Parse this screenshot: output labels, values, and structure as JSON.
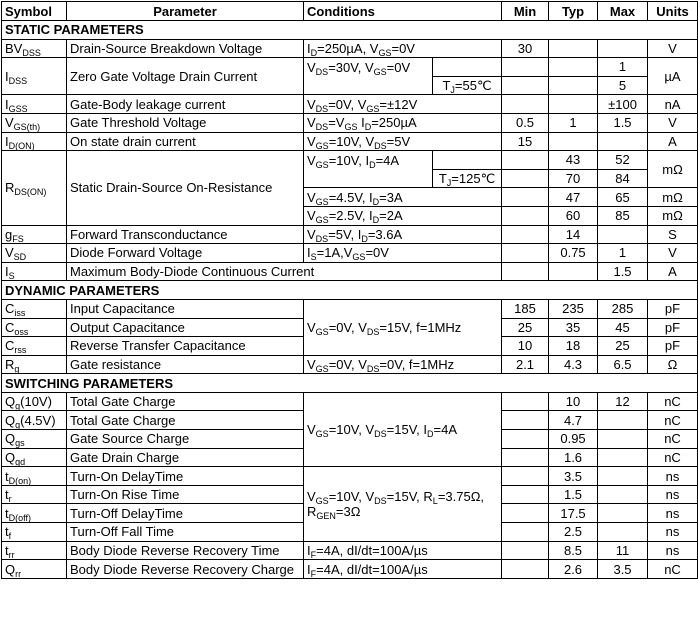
{
  "table": {
    "header": [
      "Symbol",
      "Parameter",
      "Conditions",
      "Min",
      "Typ",
      "Max",
      "Units"
    ],
    "rows": [
      {
        "section": "STATIC PARAMETERS"
      },
      {
        "sym": [
          "BV",
          "DSS"
        ],
        "param": [
          "Drain-Source Breakdown Voltage"
        ],
        "cond": [
          "I",
          "D",
          "=250µA, V",
          "GS",
          "=0V"
        ],
        "min": "30",
        "typ": "",
        "max": "",
        "unit": "V"
      },
      {
        "sym": [
          "I",
          "DSS"
        ],
        "param": [
          "Zero Gate Voltage Drain Current"
        ],
        "cond": [
          "V",
          "DS",
          "=30V, V",
          "GS",
          "=0V"
        ],
        "min": "",
        "typ": "",
        "max": "1",
        "unit": "µA"
      },
      {
        "tj": [
          "T",
          "J",
          "=55℃"
        ],
        "min": "",
        "typ": "",
        "max": "5"
      },
      {
        "sym": [
          "I",
          "GSS"
        ],
        "param": [
          "Gate-Body leakage current"
        ],
        "cond": [
          "V",
          "DS",
          "=0V, V",
          "GS",
          "=±12V"
        ],
        "min": "",
        "typ": "",
        "max": "±100",
        "unit": "nA"
      },
      {
        "sym": [
          "V",
          "GS(th)"
        ],
        "param": [
          "Gate Threshold Voltage"
        ],
        "cond": [
          "V",
          "DS",
          "=V",
          "GS",
          " I",
          "D",
          "=250µA"
        ],
        "min": "0.5",
        "typ": "1",
        "max": "1.5",
        "unit": "V"
      },
      {
        "sym": [
          "I",
          "D(ON)"
        ],
        "param": [
          "On state drain current"
        ],
        "cond": [
          "V",
          "GS",
          "=10V, V",
          "DS",
          "=5V"
        ],
        "min": "15",
        "typ": "",
        "max": "",
        "unit": "A"
      },
      {
        "sym": [
          "R",
          "DS(ON)"
        ],
        "param": [
          "Static Drain-Source On-Resistance"
        ],
        "cond": [
          "V",
          "GS",
          "=10V, I",
          "D",
          "=4A"
        ],
        "min": "",
        "typ": "43",
        "max": "52",
        "unit": "mΩ"
      },
      {
        "tj": [
          "T",
          "J",
          "=125℃"
        ],
        "min": "",
        "typ": "70",
        "max": "84"
      },
      {
        "cond": [
          "V",
          "GS",
          "=4.5V, I",
          "D",
          "=3A"
        ],
        "min": "",
        "typ": "47",
        "max": "65",
        "unit": "mΩ"
      },
      {
        "cond": [
          "V",
          "GS",
          "=2.5V, I",
          "D",
          "=2A"
        ],
        "min": "",
        "typ": "60",
        "max": "85",
        "unit": "mΩ"
      },
      {
        "sym": [
          "g",
          "FS"
        ],
        "param": [
          "Forward Transconductance"
        ],
        "cond": [
          "V",
          "DS",
          "=5V, I",
          "D",
          "=3.6A"
        ],
        "min": "",
        "typ": "14",
        "max": "",
        "unit": "S"
      },
      {
        "sym": [
          "V",
          "SD"
        ],
        "param": [
          "Diode Forward Voltage"
        ],
        "cond": [
          "I",
          "S",
          "=1A,V",
          "GS",
          "=0V"
        ],
        "min": "",
        "typ": "0.75",
        "max": "1",
        "unit": "V"
      },
      {
        "sym": [
          "I",
          "S"
        ],
        "param": [
          "Maximum Body-Diode Continuous Current"
        ],
        "min": "",
        "typ": "",
        "max": "1.5",
        "unit": "A"
      },
      {
        "section": "DYNAMIC PARAMETERS"
      },
      {
        "sym": [
          "C",
          "iss"
        ],
        "param": [
          "Input Capacitance"
        ],
        "cond": [
          "V",
          "GS",
          "=0V, V",
          "DS",
          "=15V, f=1MHz"
        ],
        "min": "185",
        "typ": "235",
        "max": "285",
        "unit": "pF"
      },
      {
        "sym": [
          "C",
          "oss"
        ],
        "param": [
          "Output Capacitance"
        ],
        "min": "25",
        "typ": "35",
        "max": "45",
        "unit": "pF"
      },
      {
        "sym": [
          "C",
          "rss"
        ],
        "param": [
          "Reverse Transfer Capacitance"
        ],
        "min": "10",
        "typ": "18",
        "max": "25",
        "unit": "pF"
      },
      {
        "sym": [
          "R",
          "g"
        ],
        "param": [
          "Gate resistance"
        ],
        "cond": [
          "V",
          "GS",
          "=0V, V",
          "DS",
          "=0V, f=1MHz"
        ],
        "min": "2.1",
        "typ": "4.3",
        "max": "6.5",
        "unit": "Ω"
      },
      {
        "section": "SWITCHING PARAMETERS"
      },
      {
        "sym": [
          "Q",
          "g",
          "(10V)"
        ],
        "param": [
          "Total Gate Charge"
        ],
        "cond": [
          "V",
          "GS",
          "=10V, V",
          "DS",
          "=15V, I",
          "D",
          "=4A"
        ],
        "min": "",
        "typ": "10",
        "max": "12",
        "unit": "nC"
      },
      {
        "sym": [
          "Q",
          "g",
          "(4.5V)"
        ],
        "param": [
          "Total Gate Charge"
        ],
        "min": "",
        "typ": "4.7",
        "max": "",
        "unit": "nC"
      },
      {
        "sym": [
          "Q",
          "gs"
        ],
        "param": [
          "Gate Source Charge"
        ],
        "min": "",
        "typ": "0.95",
        "max": "",
        "unit": "nC"
      },
      {
        "sym": [
          "Q",
          "gd"
        ],
        "param": [
          "Gate Drain Charge"
        ],
        "min": "",
        "typ": "1.6",
        "max": "",
        "unit": "nC"
      },
      {
        "sym": [
          "t",
          "D(on)"
        ],
        "param": [
          "Turn-On DelayTime"
        ],
        "cond": [
          "V",
          "GS",
          "=10V, V",
          "DS",
          "=15V, R",
          "L",
          "=3.75Ω,\nR",
          "GEN",
          "=3Ω"
        ],
        "min": "",
        "typ": "3.5",
        "max": "",
        "unit": "ns"
      },
      {
        "sym": [
          "t",
          "r"
        ],
        "param": [
          "Turn-On Rise Time"
        ],
        "min": "",
        "typ": "1.5",
        "max": "",
        "unit": "ns"
      },
      {
        "sym": [
          "t",
          "D(off)"
        ],
        "param": [
          "Turn-Off DelayTime"
        ],
        "min": "",
        "typ": "17.5",
        "max": "",
        "unit": "ns"
      },
      {
        "sym": [
          "t",
          "f"
        ],
        "param": [
          "Turn-Off Fall Time"
        ],
        "min": "",
        "typ": "2.5",
        "max": "",
        "unit": "ns"
      },
      {
        "sym": [
          "t",
          "rr"
        ],
        "param": [
          "Body Diode Reverse Recovery Time"
        ],
        "cond": [
          "I",
          "F",
          "=4A, dI/dt=100A/µs"
        ],
        "min": "",
        "typ": "8.5",
        "max": "11",
        "unit": "ns"
      },
      {
        "sym": [
          "Q",
          "rr"
        ],
        "param": [
          "Body Diode Reverse Recovery Charge"
        ],
        "cond": [
          "I",
          "F",
          "=4A, dI/dt=100A/µs"
        ],
        "min": "",
        "typ": "2.6",
        "max": "3.5",
        "unit": "nC"
      }
    ]
  }
}
